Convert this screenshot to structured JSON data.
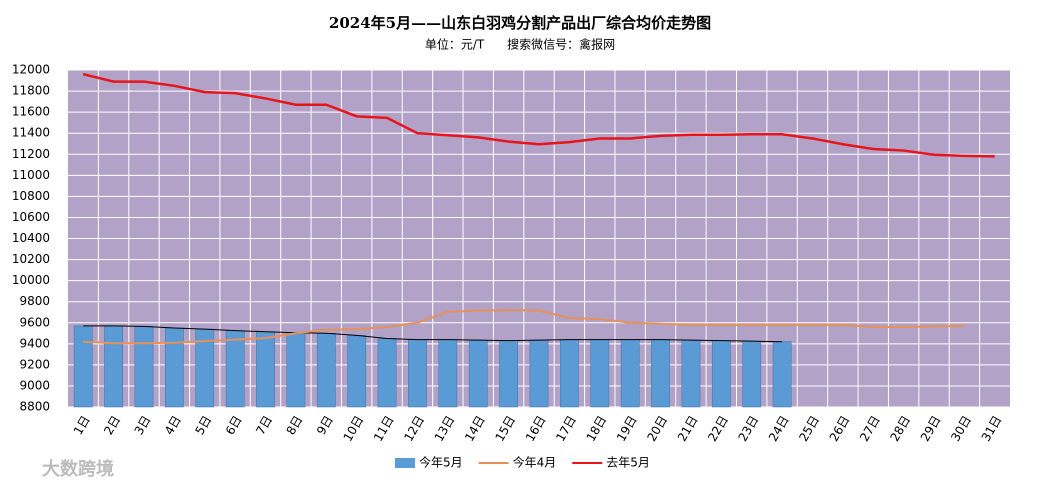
{
  "chart_data": {
    "type": "bar_line",
    "title": "2024年5月——山东白羽鸡分割产品出厂综合均价走势图",
    "subtitle": "单位：元/T      搜索微信号：禽报网",
    "watermark": "大数跨境",
    "categories": [
      "1日",
      "2日",
      "3日",
      "4日",
      "5日",
      "6日",
      "7日",
      "8日",
      "9日",
      "10日",
      "11日",
      "12日",
      "13日",
      "14日",
      "15日",
      "16日",
      "17日",
      "18日",
      "19日",
      "20日",
      "21日",
      "22日",
      "23日",
      "24日",
      "25日",
      "26日",
      "27日",
      "28日",
      "29日",
      "30日",
      "31日"
    ],
    "ylim": [
      8800,
      12000
    ],
    "yticks": [
      8800,
      9000,
      9200,
      9400,
      9600,
      9800,
      10000,
      10200,
      10400,
      10600,
      10800,
      11000,
      11200,
      11400,
      11600,
      11800,
      12000
    ],
    "grid": true,
    "plot_background": "#b3a2c7",
    "legend": "bottom",
    "series": [
      {
        "name": "今年5月",
        "kind": "bar",
        "color": "#5b9bd5",
        "trendline_color": "#000000",
        "values": [
          9570,
          9570,
          9565,
          9550,
          9540,
          9525,
          9515,
          9505,
          9500,
          9480,
          9450,
          9440,
          9440,
          9435,
          9430,
          9435,
          9440,
          9440,
          9440,
          9440,
          9435,
          9430,
          9425,
          9420,
          null,
          null,
          null,
          null,
          null,
          null,
          null
        ]
      },
      {
        "name": "今年4月",
        "kind": "line",
        "color": "#e6915a",
        "values": [
          9420,
          9405,
          9405,
          9410,
          9425,
          9440,
          9455,
          9500,
          9535,
          9540,
          9560,
          9600,
          9705,
          9715,
          9720,
          9715,
          9645,
          9635,
          9600,
          9590,
          9580,
          9580,
          9580,
          9580,
          9580,
          9580,
          9560,
          9560,
          9565,
          9570,
          null
        ]
      },
      {
        "name": "去年5月",
        "kind": "line",
        "color": "#e8141c",
        "values": [
          11960,
          11890,
          11890,
          11850,
          11790,
          11780,
          11730,
          11670,
          11670,
          11560,
          11545,
          11400,
          11380,
          11360,
          11320,
          11295,
          11315,
          11350,
          11350,
          11375,
          11385,
          11385,
          11390,
          11390,
          11350,
          11295,
          11250,
          11235,
          11195,
          11185,
          11180
        ]
      }
    ]
  }
}
